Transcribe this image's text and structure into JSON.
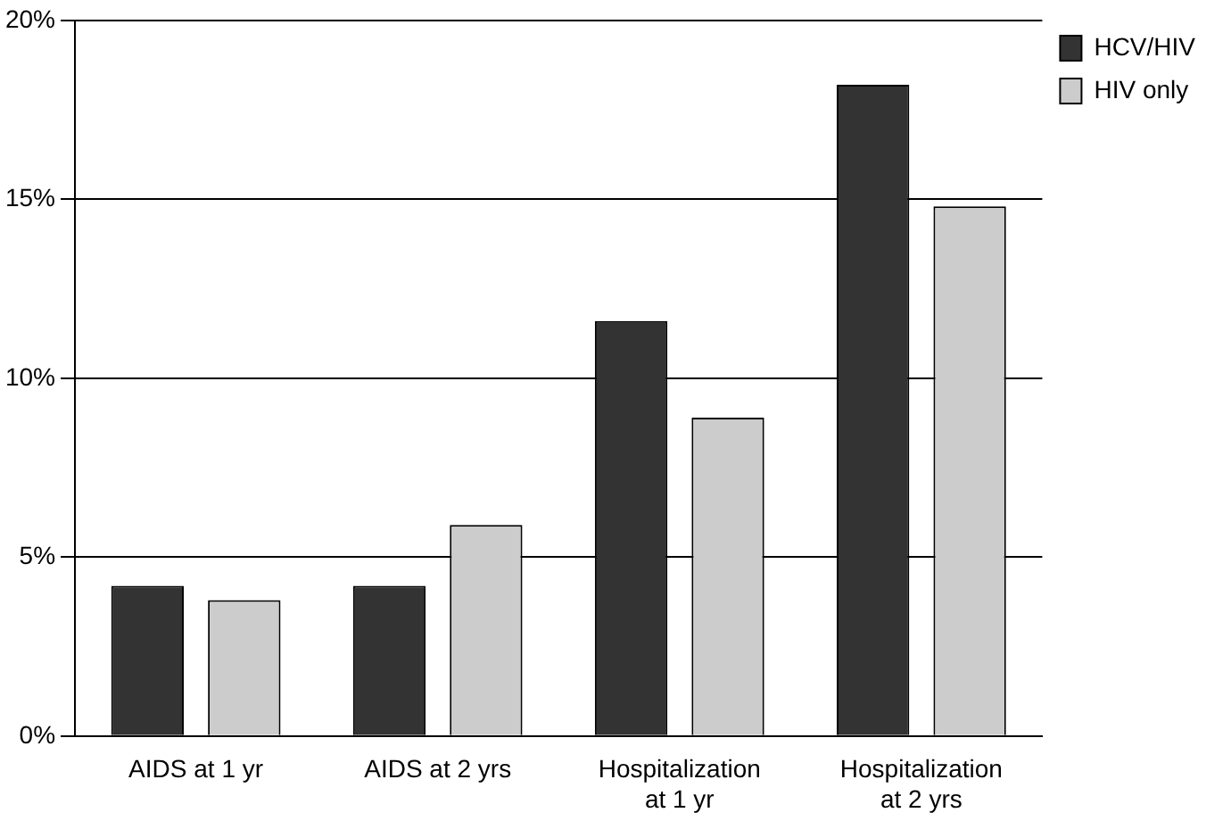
{
  "chart_data": {
    "type": "bar",
    "categories": [
      "AIDS at 1 yr",
      "AIDS at 2 yrs",
      "Hospitalization at 1 yr",
      "Hospitalization at 2 yrs"
    ],
    "series": [
      {
        "name": "HCV/HIV",
        "color": "#333333",
        "values": [
          4.2,
          4.2,
          11.6,
          18.2
        ]
      },
      {
        "name": "HIV only",
        "color": "#cccccc",
        "values": [
          3.8,
          5.9,
          8.9,
          14.8
        ]
      }
    ],
    "ylim": [
      0,
      20
    ],
    "yticks": [
      {
        "value": 0,
        "label": "0%"
      },
      {
        "value": 5,
        "label": "5%"
      },
      {
        "value": 10,
        "label": "10%"
      },
      {
        "value": 15,
        "label": "15%"
      },
      {
        "value": 20,
        "label": "20%"
      }
    ],
    "grid": "y",
    "legend": "top right"
  }
}
